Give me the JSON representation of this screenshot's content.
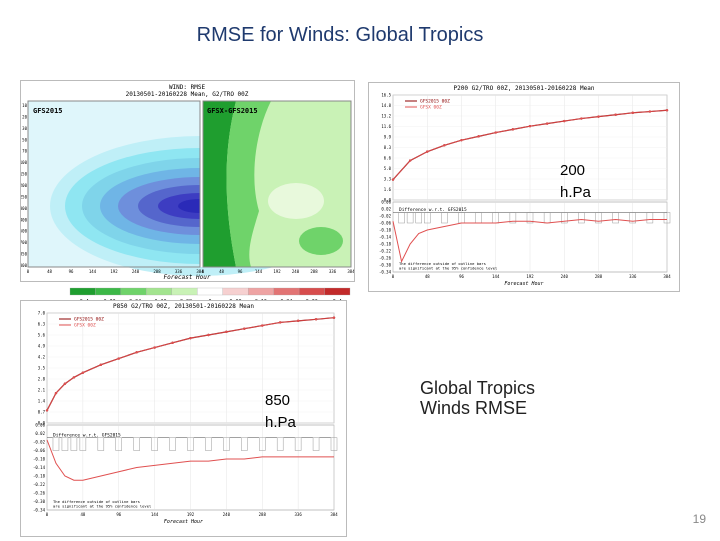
{
  "slide": {
    "title": "RMSE for Winds: Global Tropics",
    "label_200": [
      "200",
      "h.Pa"
    ],
    "label_850": [
      "850",
      "h.Pa"
    ],
    "caption": [
      "Global Tropics",
      "Winds RMSE"
    ],
    "page_number": "19"
  },
  "contour": {
    "header": [
      "WIND: RMSE",
      "20130501-20160228 Mean, G2/TRO 00Z"
    ],
    "left_label": "GFS2015",
    "right_label": "GFSX-GFS2015",
    "xlabel": "Forecast Hour",
    "x_ticks": [
      "0",
      "48",
      "96",
      "144",
      "192",
      "240",
      "288",
      "336",
      "384"
    ],
    "y_ticks": [
      "10",
      "20",
      "30",
      "50",
      "70",
      "100",
      "150",
      "200",
      "250",
      "300",
      "400",
      "500",
      "700",
      "850",
      "1000"
    ],
    "colorbar_ticks": [
      "-0.4",
      "-0.32",
      "-0.24",
      "-0.16",
      "-0.08",
      "0",
      "0.08",
      "0.16",
      "0.24",
      "0.32",
      "0.4"
    ],
    "colors": {
      "blue_dark": "#2a2ab8",
      "blue": "#6e8fdc",
      "cyan": "#8fe6f2",
      "green_dark": "#1f9e2f",
      "green": "#6fd36a",
      "green_light": "#c9f2b6",
      "red": "#d03a3a"
    }
  },
  "chart_data": [
    {
      "type": "line",
      "title": "P200 G2/TRO 00Z, 20130501-20160228 Mean",
      "xlabel": "Forecast Hour",
      "x": [
        0,
        24,
        48,
        72,
        96,
        120,
        144,
        168,
        192,
        216,
        240,
        264,
        288,
        312,
        336,
        360,
        384
      ],
      "x_ticks": [
        "0",
        "48",
        "96",
        "144",
        "192",
        "240",
        "288",
        "336",
        "384"
      ],
      "series": [
        {
          "name": "GFS2015 00Z",
          "values": [
            3.2,
            6.2,
            7.6,
            8.6,
            9.4,
            10.0,
            10.6,
            11.1,
            11.6,
            12.0,
            12.4,
            12.8,
            13.1,
            13.4,
            13.7,
            13.9,
            14.1
          ]
        },
        {
          "name": "GFSX 00Z",
          "values": [
            3.2,
            6.2,
            7.6,
            8.6,
            9.4,
            10.0,
            10.6,
            11.1,
            11.6,
            12.0,
            12.4,
            12.8,
            13.1,
            13.4,
            13.7,
            13.9,
            14.1
          ]
        }
      ],
      "ylim": [
        0,
        16.5
      ],
      "difference": {
        "label": "Difference w.r.t. GFS2015",
        "x": [
          0,
          12,
          24,
          36,
          48,
          72,
          96,
          120,
          144,
          168,
          192,
          216,
          240,
          264,
          288,
          312,
          336,
          360,
          384
        ],
        "values": [
          -0.05,
          -0.28,
          -0.18,
          -0.12,
          -0.1,
          -0.08,
          -0.06,
          -0.06,
          -0.06,
          -0.05,
          -0.05,
          -0.06,
          -0.05,
          -0.04,
          -0.05,
          -0.04,
          -0.05,
          -0.04,
          -0.04
        ],
        "ylim": [
          -0.34,
          0.06
        ],
        "note": [
          "The difference outside of outline bars",
          "are significant at the 95% confidence level"
        ]
      }
    },
    {
      "type": "line",
      "title": "P850 G2/TRO 00Z, 20130501-20160228 Mean",
      "xlabel": "Forecast Hour",
      "x": [
        0,
        12,
        24,
        36,
        48,
        72,
        96,
        120,
        144,
        168,
        192,
        216,
        240,
        264,
        288,
        312,
        336,
        360,
        384
      ],
      "x_ticks": [
        "0",
        "48",
        "96",
        "144",
        "192",
        "240",
        "288",
        "336",
        "384"
      ],
      "series": [
        {
          "name": "GFS2015 00Z",
          "values": [
            0.8,
            1.9,
            2.5,
            2.9,
            3.2,
            3.7,
            4.1,
            4.5,
            4.8,
            5.1,
            5.4,
            5.6,
            5.8,
            6.0,
            6.2,
            6.4,
            6.5,
            6.6,
            6.7
          ]
        },
        {
          "name": "GFSX 00Z",
          "values": [
            0.8,
            1.9,
            2.5,
            2.9,
            3.2,
            3.7,
            4.1,
            4.5,
            4.8,
            5.1,
            5.4,
            5.6,
            5.8,
            6.0,
            6.2,
            6.4,
            6.5,
            6.6,
            6.7
          ]
        }
      ],
      "ylim": [
        0,
        7
      ],
      "difference": {
        "label": "Difference w.r.t. GFS2015",
        "x": [
          0,
          12,
          24,
          36,
          48,
          72,
          96,
          120,
          144,
          168,
          192,
          216,
          240,
          264,
          288,
          312,
          336,
          360,
          384
        ],
        "values": [
          -0.01,
          -0.12,
          -0.18,
          -0.2,
          -0.2,
          -0.18,
          -0.16,
          -0.14,
          -0.13,
          -0.12,
          -0.11,
          -0.11,
          -0.1,
          -0.1,
          -0.09,
          -0.09,
          -0.09,
          -0.09,
          -0.09
        ],
        "ylim": [
          -0.34,
          0.06
        ],
        "note": [
          "The difference outside of outline bars",
          "are significant at the 95% confidence level"
        ]
      }
    }
  ]
}
